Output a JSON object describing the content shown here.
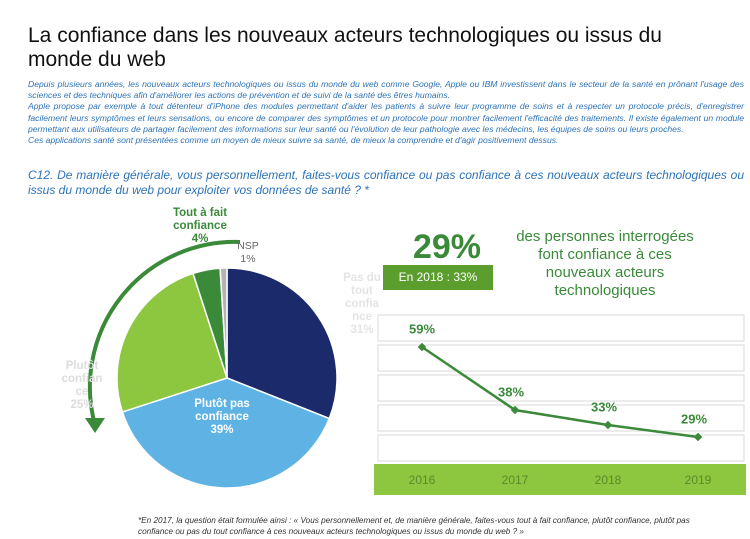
{
  "title": "La confiance dans les nouveaux acteurs technologiques ou issus du monde du web",
  "intro": [
    "Depuis plusieurs années, les nouveaux acteurs technologiques ou issus du monde du web comme Google, Apple ou IBM investissent dans le secteur de la santé en prônant l'usage des sciences et des techniques afin d'améliorer les actions de prévention et de suivi de la santé des êtres humains.",
    "Apple propose par exemple à tout détenteur d'iPhone des modules permettant d'aider les patients à suivre leur programme de soins et à respecter un protocole précis, d'enregistrer facilement leurs symptômes et leurs sensations, ou encore de comparer des symptômes et un protocole pour montrer facilement l'efficacité des traitements. Il existe également un module permettant aux utilisateurs de partager facilement des informations sur leur santé ou l'évolution de leur pathologie avec les médecins, les équipes de soins ou leurs proches.",
    "Ces applications santé sont présentées comme un moyen de mieux suivre sa santé, de mieux la comprendre et d'agir positivement dessus."
  ],
  "question": "C12. De manière générale, vous personnellement, faites-vous confiance ou pas confiance à ces nouveaux acteurs technologiques ou issus du monde du web pour exploiter vos données de santé ? *",
  "highlight": {
    "value": "29%",
    "badge": "En 2018 : 33%",
    "text": "des personnes interrogées font confiance à ces nouveaux acteurs technologiques"
  },
  "chart_data": [
    {
      "type": "pie",
      "categories": [
        "Pas du tout confiance",
        "Plutôt pas confiance",
        "Plutôt confiance",
        "Tout à fait confiance",
        "NSP"
      ],
      "values": [
        31,
        39,
        25,
        4,
        1
      ],
      "value_labels": [
        "31%",
        "39%",
        "25%",
        "4%",
        "1%"
      ],
      "colors": [
        "#1b2a6b",
        "#5eb3e4",
        "#8dc63f",
        "#3a8a3a",
        "#b3b3b3"
      ]
    },
    {
      "type": "line",
      "x": [
        "2016",
        "2017",
        "2018",
        "2019"
      ],
      "values": [
        59,
        38,
        33,
        29
      ],
      "value_labels": [
        "59%",
        "38%",
        "33%",
        "29%"
      ],
      "color": "#3a8a3a"
    }
  ],
  "footnote": "*En 2017, la question était formulée ainsi : « Vous personnellement et, de manière générale, faites-vous tout à fait confiance, plutôt confiance, plutôt pas confiance ou pas du tout confiance à ces nouveaux acteurs technologiques ou issus du monde du web ? »"
}
